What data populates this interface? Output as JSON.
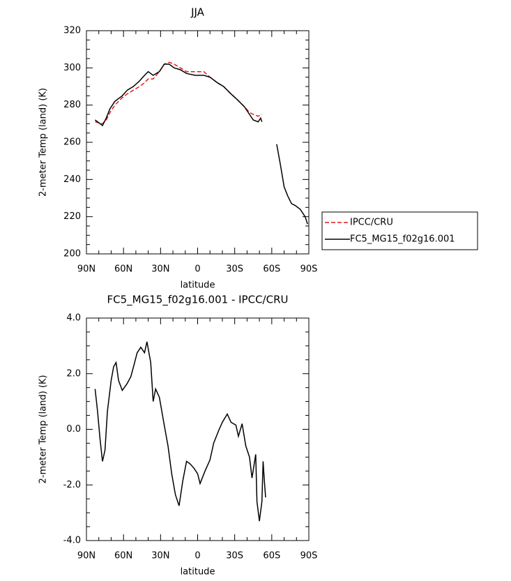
{
  "chart_data": [
    {
      "type": "line",
      "title": "JJA",
      "xlabel": "latitude",
      "ylabel": "2-meter Temp (land) (K)",
      "xlim": [
        90,
        -90
      ],
      "xticks": [
        {
          "value": 90,
          "label": "90N"
        },
        {
          "value": 60,
          "label": "60N"
        },
        {
          "value": 30,
          "label": "30N"
        },
        {
          "value": 0,
          "label": "0"
        },
        {
          "value": -30,
          "label": "30S"
        },
        {
          "value": -60,
          "label": "60S"
        },
        {
          "value": -90,
          "label": "90S"
        }
      ],
      "ylim": [
        200,
        320
      ],
      "yticks": [
        200,
        220,
        240,
        260,
        280,
        300,
        320
      ],
      "legend": "outside-right",
      "series": [
        {
          "name": "IPCC/CRU",
          "color": "#e41a1c",
          "line_style": "dashed",
          "x": [
            83,
            77,
            74,
            71,
            67,
            61,
            57,
            52,
            47,
            43,
            40,
            36,
            31,
            27,
            23,
            19,
            14,
            9,
            2,
            -5,
            -10,
            -16,
            -21,
            -27,
            -32,
            -38,
            -42,
            -45,
            -49,
            -52
          ],
          "values": [
            271,
            270,
            272,
            276,
            280,
            284,
            286,
            288,
            290,
            292,
            294,
            294,
            298,
            302,
            303,
            302,
            300,
            298,
            298,
            298,
            295,
            292,
            290,
            286,
            283,
            279,
            276,
            275,
            274,
            275
          ]
        },
        {
          "name": "FC5_MG15_f02g16.001",
          "color": "#000000",
          "line_style": "solid",
          "x": [
            83,
            77,
            74,
            71,
            67,
            61,
            57,
            52,
            47,
            43,
            40,
            36,
            31,
            27,
            23,
            19,
            14,
            9,
            2,
            -5,
            -10,
            -16,
            -21,
            -27,
            -32,
            -38,
            -42,
            -45,
            -49,
            -51,
            -52,
            -58,
            -64,
            -67,
            -70,
            -73,
            -76,
            -79,
            -83,
            -87,
            -89
          ],
          "values": [
            272,
            269,
            273,
            278,
            282,
            285,
            288,
            290,
            293,
            296,
            298,
            296,
            298,
            302,
            302,
            300,
            299,
            297,
            296,
            296,
            295,
            292,
            290,
            286,
            283,
            279,
            275,
            272,
            271,
            273,
            271,
            null,
            259,
            248,
            236,
            231,
            227,
            226,
            224,
            220,
            216
          ]
        }
      ]
    },
    {
      "type": "line",
      "title": "FC5_MG15_f02g16.001 - IPCC/CRU",
      "xlabel": "latitude",
      "ylabel": "2-meter Temp (land) (K)",
      "xlim": [
        90,
        -90
      ],
      "xticks": [
        {
          "value": 90,
          "label": "90N"
        },
        {
          "value": 60,
          "label": "60N"
        },
        {
          "value": 30,
          "label": "30N"
        },
        {
          "value": 0,
          "label": "0"
        },
        {
          "value": -30,
          "label": "30S"
        },
        {
          "value": -60,
          "label": "60S"
        },
        {
          "value": -90,
          "label": "90S"
        }
      ],
      "ylim": [
        -4,
        4
      ],
      "yticks": [
        {
          "value": -4,
          "label": "-4.0"
        },
        {
          "value": -2,
          "label": "-2.0"
        },
        {
          "value": 0,
          "label": "0.0"
        },
        {
          "value": 2,
          "label": "2.0"
        },
        {
          "value": 4,
          "label": "4.0"
        }
      ],
      "series": [
        {
          "color": "#000000",
          "line_style": "solid",
          "x": [
            83,
            81,
            79,
            77,
            75,
            73,
            70,
            68,
            66,
            64,
            61,
            57,
            54,
            51,
            49,
            46,
            43,
            41,
            38,
            36,
            34,
            31,
            27,
            24,
            21,
            18,
            15,
            12,
            9,
            6,
            3,
            0,
            -2,
            -6,
            -10,
            -13,
            -17,
            -20,
            -24,
            -27,
            -31,
            -33,
            -36,
            -39,
            -42,
            -44,
            -47,
            -48,
            -50,
            -52,
            -53,
            -54,
            -55
          ],
          "values": [
            1.45,
            0.65,
            -0.35,
            -1.15,
            -0.75,
            0.65,
            1.75,
            2.25,
            2.4,
            1.75,
            1.4,
            1.65,
            1.9,
            2.4,
            2.75,
            2.95,
            2.75,
            3.15,
            2.4,
            1.0,
            1.45,
            1.15,
            0.15,
            -0.6,
            -1.6,
            -2.35,
            -2.75,
            -1.85,
            -1.15,
            -1.25,
            -1.4,
            -1.6,
            -1.95,
            -1.5,
            -1.1,
            -0.5,
            -0.05,
            0.25,
            0.55,
            0.25,
            0.15,
            -0.25,
            0.2,
            -0.6,
            -1.0,
            -1.75,
            -0.9,
            -2.6,
            -3.3,
            -2.6,
            -1.15,
            -1.85,
            -2.45
          ]
        }
      ]
    }
  ]
}
